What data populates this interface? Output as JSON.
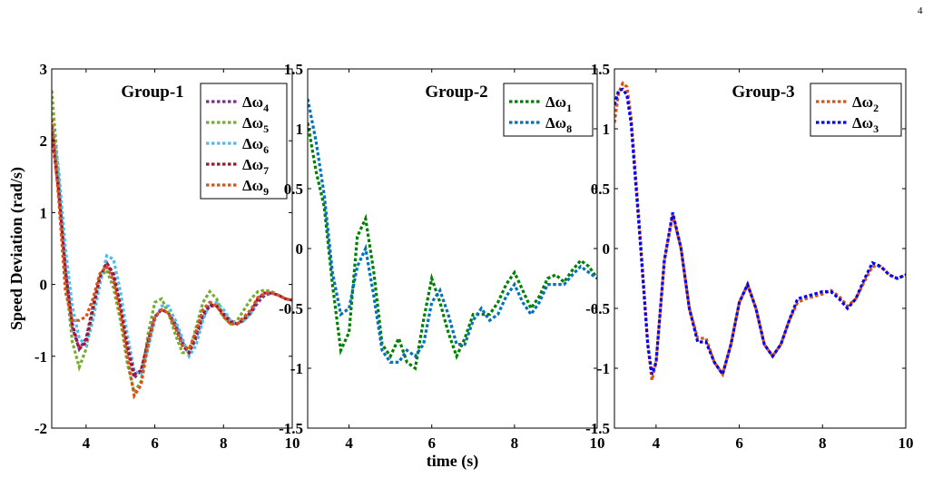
{
  "page_number": "4",
  "chart_data": [
    {
      "type": "line",
      "title": "Group-1",
      "ylabel": "Speed Deviation (rad/s)",
      "xlabel": "",
      "xlim": [
        3,
        10
      ],
      "ylim": [
        -2,
        3
      ],
      "xticks": [
        4,
        6,
        8,
        10
      ],
      "yticks": [
        -2,
        -1,
        0,
        1,
        2,
        3
      ],
      "legend": "top-right",
      "series": [
        {
          "name": "Δω",
          "sub": "4",
          "color": "#7e2f8e",
          "x": [
            3.0,
            3.2,
            3.4,
            3.6,
            3.8,
            4.0,
            4.2,
            4.4,
            4.6,
            4.8,
            5.0,
            5.2,
            5.4,
            5.6,
            5.8,
            6.0,
            6.2,
            6.4,
            6.6,
            6.8,
            7.0,
            7.2,
            7.4,
            7.6,
            7.8,
            8.0,
            8.2,
            8.4,
            8.6,
            8.8,
            9.0,
            9.2,
            9.4,
            9.6,
            9.8,
            10.0
          ],
          "y": [
            2.2,
            1.4,
            0.2,
            -0.6,
            -0.9,
            -0.75,
            -0.3,
            0.1,
            0.3,
            0.1,
            -0.3,
            -0.9,
            -1.3,
            -1.2,
            -0.8,
            -0.45,
            -0.35,
            -0.4,
            -0.55,
            -0.8,
            -0.95,
            -0.75,
            -0.45,
            -0.3,
            -0.3,
            -0.4,
            -0.5,
            -0.55,
            -0.5,
            -0.4,
            -0.25,
            -0.15,
            -0.12,
            -0.15,
            -0.2,
            -0.22
          ]
        },
        {
          "name": "Δω",
          "sub": "5",
          "color": "#77ac30",
          "x": [
            3.0,
            3.2,
            3.4,
            3.6,
            3.8,
            4.0,
            4.2,
            4.4,
            4.6,
            4.8,
            5.0,
            5.2,
            5.4,
            5.6,
            5.8,
            6.0,
            6.2,
            6.4,
            6.6,
            6.8,
            7.0,
            7.2,
            7.4,
            7.6,
            7.8,
            8.0,
            8.2,
            8.4,
            8.6,
            8.8,
            9.0,
            9.2,
            9.4,
            9.6,
            9.8,
            10.0
          ],
          "y": [
            2.7,
            1.5,
            0.1,
            -0.8,
            -1.15,
            -0.9,
            -0.35,
            0.1,
            0.2,
            -0.05,
            -0.5,
            -1.1,
            -1.5,
            -1.35,
            -0.7,
            -0.25,
            -0.2,
            -0.4,
            -0.7,
            -0.95,
            -0.95,
            -0.6,
            -0.25,
            -0.1,
            -0.2,
            -0.45,
            -0.55,
            -0.5,
            -0.35,
            -0.2,
            -0.1,
            -0.08,
            -0.1,
            -0.15,
            -0.2,
            -0.22
          ]
        },
        {
          "name": "Δω",
          "sub": "6",
          "color": "#4dbeee",
          "x": [
            3.0,
            3.2,
            3.4,
            3.6,
            3.8,
            4.0,
            4.2,
            4.4,
            4.6,
            4.8,
            5.0,
            5.2,
            5.4,
            5.6,
            5.8,
            6.0,
            6.2,
            6.4,
            6.6,
            6.8,
            7.0,
            7.2,
            7.4,
            7.6,
            7.8,
            8.0,
            8.2,
            8.4,
            8.6,
            8.8,
            9.0,
            9.2,
            9.4,
            9.6,
            9.8,
            10.0
          ],
          "y": [
            2.3,
            1.6,
            0.5,
            -0.3,
            -0.75,
            -0.85,
            -0.5,
            0.0,
            0.4,
            0.35,
            -0.1,
            -0.7,
            -1.2,
            -1.25,
            -0.9,
            -0.5,
            -0.3,
            -0.3,
            -0.5,
            -0.75,
            -1.0,
            -0.85,
            -0.5,
            -0.25,
            -0.25,
            -0.35,
            -0.5,
            -0.55,
            -0.5,
            -0.4,
            -0.2,
            -0.12,
            -0.12,
            -0.15,
            -0.2,
            -0.22
          ]
        },
        {
          "name": "Δω",
          "sub": "7",
          "color": "#a2142f",
          "x": [
            3.0,
            3.2,
            3.4,
            3.6,
            3.8,
            4.0,
            4.2,
            4.4,
            4.6,
            4.8,
            5.0,
            5.2,
            5.4,
            5.6,
            5.8,
            6.0,
            6.2,
            6.4,
            6.6,
            6.8,
            7.0,
            7.2,
            7.4,
            7.6,
            7.8,
            8.0,
            8.2,
            8.4,
            8.6,
            8.8,
            9.0,
            9.2,
            9.4,
            9.6,
            9.8,
            10.0
          ],
          "y": [
            2.1,
            1.3,
            0.2,
            -0.55,
            -0.9,
            -0.8,
            -0.35,
            0.1,
            0.3,
            0.15,
            -0.3,
            -0.85,
            -1.25,
            -1.2,
            -0.8,
            -0.45,
            -0.35,
            -0.4,
            -0.6,
            -0.85,
            -0.95,
            -0.7,
            -0.4,
            -0.28,
            -0.3,
            -0.42,
            -0.52,
            -0.55,
            -0.48,
            -0.38,
            -0.2,
            -0.12,
            -0.12,
            -0.15,
            -0.2,
            -0.22
          ]
        },
        {
          "name": "Δω",
          "sub": "9",
          "color": "#d95319",
          "x": [
            3.0,
            3.2,
            3.4,
            3.6,
            3.8,
            4.0,
            4.2,
            4.4,
            4.6,
            4.8,
            5.0,
            5.2,
            5.4,
            5.6,
            5.8,
            6.0,
            6.2,
            6.4,
            6.6,
            6.8,
            7.0,
            7.2,
            7.4,
            7.6,
            7.8,
            8.0,
            8.2,
            8.4,
            8.6,
            8.8,
            9.0,
            9.2,
            9.4,
            9.6,
            9.8,
            10.0
          ],
          "y": [
            2.3,
            1.2,
            -0.1,
            -0.5,
            -0.5,
            -0.45,
            -0.2,
            0.15,
            0.25,
            0.05,
            -0.4,
            -1.0,
            -1.55,
            -1.4,
            -0.85,
            -0.45,
            -0.35,
            -0.4,
            -0.6,
            -0.85,
            -0.9,
            -0.65,
            -0.35,
            -0.25,
            -0.3,
            -0.45,
            -0.55,
            -0.55,
            -0.45,
            -0.35,
            -0.18,
            -0.12,
            -0.12,
            -0.15,
            -0.2,
            -0.22
          ]
        }
      ]
    },
    {
      "type": "line",
      "title": "Group-2",
      "ylabel": "",
      "xlabel": "time (s)",
      "xlim": [
        3,
        10
      ],
      "ylim": [
        -1.5,
        1.5
      ],
      "xticks": [
        4,
        6,
        8,
        10
      ],
      "yticks": [
        -1.5,
        -1,
        -0.5,
        0,
        0.5,
        1,
        1.5
      ],
      "legend": "top-right",
      "series": [
        {
          "name": "Δω",
          "sub": "1",
          "color": "#008000",
          "x": [
            3.0,
            3.2,
            3.4,
            3.6,
            3.8,
            4.0,
            4.2,
            4.4,
            4.6,
            4.8,
            5.0,
            5.2,
            5.4,
            5.6,
            5.8,
            6.0,
            6.2,
            6.4,
            6.6,
            6.8,
            7.0,
            7.2,
            7.4,
            7.6,
            7.8,
            8.0,
            8.2,
            8.4,
            8.6,
            8.8,
            9.0,
            9.2,
            9.4,
            9.6,
            9.8,
            10.0
          ],
          "y": [
            1.05,
            0.65,
            0.35,
            -0.3,
            -0.85,
            -0.7,
            0.1,
            0.25,
            -0.2,
            -0.8,
            -0.9,
            -0.75,
            -0.95,
            -1.0,
            -0.6,
            -0.25,
            -0.45,
            -0.7,
            -0.9,
            -0.75,
            -0.55,
            -0.55,
            -0.55,
            -0.45,
            -0.3,
            -0.2,
            -0.35,
            -0.5,
            -0.4,
            -0.25,
            -0.22,
            -0.28,
            -0.18,
            -0.1,
            -0.15,
            -0.25
          ]
        },
        {
          "name": "Δω",
          "sub": "8",
          "color": "#0072bd",
          "x": [
            3.0,
            3.2,
            3.4,
            3.6,
            3.8,
            4.0,
            4.2,
            4.4,
            4.6,
            4.8,
            5.0,
            5.2,
            5.4,
            5.6,
            5.8,
            6.0,
            6.2,
            6.4,
            6.6,
            6.8,
            7.0,
            7.2,
            7.4,
            7.6,
            7.8,
            8.0,
            8.2,
            8.4,
            8.6,
            8.8,
            9.0,
            9.2,
            9.4,
            9.6,
            9.8,
            10.0
          ],
          "y": [
            1.25,
            0.9,
            0.45,
            -0.2,
            -0.55,
            -0.5,
            -0.15,
            0.0,
            -0.4,
            -0.85,
            -0.95,
            -0.95,
            -0.85,
            -0.9,
            -0.8,
            -0.45,
            -0.35,
            -0.55,
            -0.8,
            -0.8,
            -0.6,
            -0.5,
            -0.6,
            -0.55,
            -0.4,
            -0.3,
            -0.45,
            -0.55,
            -0.45,
            -0.3,
            -0.3,
            -0.3,
            -0.22,
            -0.15,
            -0.2,
            -0.25
          ]
        }
      ]
    },
    {
      "type": "line",
      "title": "Group-3",
      "ylabel": "",
      "xlabel": "",
      "xlim": [
        3,
        10
      ],
      "ylim": [
        -1.5,
        1.5
      ],
      "xticks": [
        4,
        6,
        8,
        10
      ],
      "yticks": [
        -1.5,
        -1,
        -0.5,
        0,
        0.5,
        1,
        1.5
      ],
      "legend": "top-right",
      "series": [
        {
          "name": "Δω",
          "sub": "2",
          "color": "#d95319",
          "x": [
            3.0,
            3.1,
            3.2,
            3.3,
            3.4,
            3.6,
            3.8,
            3.9,
            4.0,
            4.2,
            4.4,
            4.6,
            4.8,
            5.0,
            5.2,
            5.4,
            5.6,
            5.8,
            6.0,
            6.2,
            6.4,
            6.6,
            6.8,
            7.0,
            7.2,
            7.4,
            7.6,
            7.8,
            8.0,
            8.2,
            8.4,
            8.6,
            8.8,
            9.0,
            9.2,
            9.4,
            9.6,
            9.8,
            10.0
          ],
          "y": [
            1.05,
            1.3,
            1.38,
            1.35,
            1.1,
            0.2,
            -0.8,
            -1.1,
            -0.95,
            -0.1,
            0.28,
            0.0,
            -0.5,
            -0.75,
            -0.75,
            -0.95,
            -1.05,
            -0.8,
            -0.45,
            -0.3,
            -0.5,
            -0.8,
            -0.9,
            -0.8,
            -0.6,
            -0.45,
            -0.42,
            -0.4,
            -0.38,
            -0.35,
            -0.4,
            -0.48,
            -0.42,
            -0.28,
            -0.15,
            -0.15,
            -0.22,
            -0.25,
            -0.22
          ]
        },
        {
          "name": "Δω",
          "sub": "3",
          "color": "#0000ff",
          "x": [
            3.0,
            3.1,
            3.2,
            3.3,
            3.4,
            3.6,
            3.8,
            3.9,
            4.0,
            4.2,
            4.4,
            4.6,
            4.8,
            5.0,
            5.2,
            5.4,
            5.6,
            5.8,
            6.0,
            6.2,
            6.4,
            6.6,
            6.8,
            7.0,
            7.2,
            7.4,
            7.6,
            7.8,
            8.0,
            8.2,
            8.4,
            8.6,
            8.8,
            9.0,
            9.2,
            9.4,
            9.6,
            9.8,
            10.0
          ],
          "y": [
            1.2,
            1.32,
            1.33,
            1.28,
            1.05,
            0.15,
            -0.8,
            -1.05,
            -0.95,
            -0.1,
            0.3,
            0.0,
            -0.5,
            -0.78,
            -0.78,
            -0.95,
            -1.05,
            -0.8,
            -0.45,
            -0.3,
            -0.5,
            -0.8,
            -0.9,
            -0.8,
            -0.6,
            -0.42,
            -0.4,
            -0.38,
            -0.36,
            -0.36,
            -0.42,
            -0.5,
            -0.42,
            -0.26,
            -0.12,
            -0.15,
            -0.22,
            -0.25,
            -0.22
          ]
        }
      ]
    }
  ]
}
